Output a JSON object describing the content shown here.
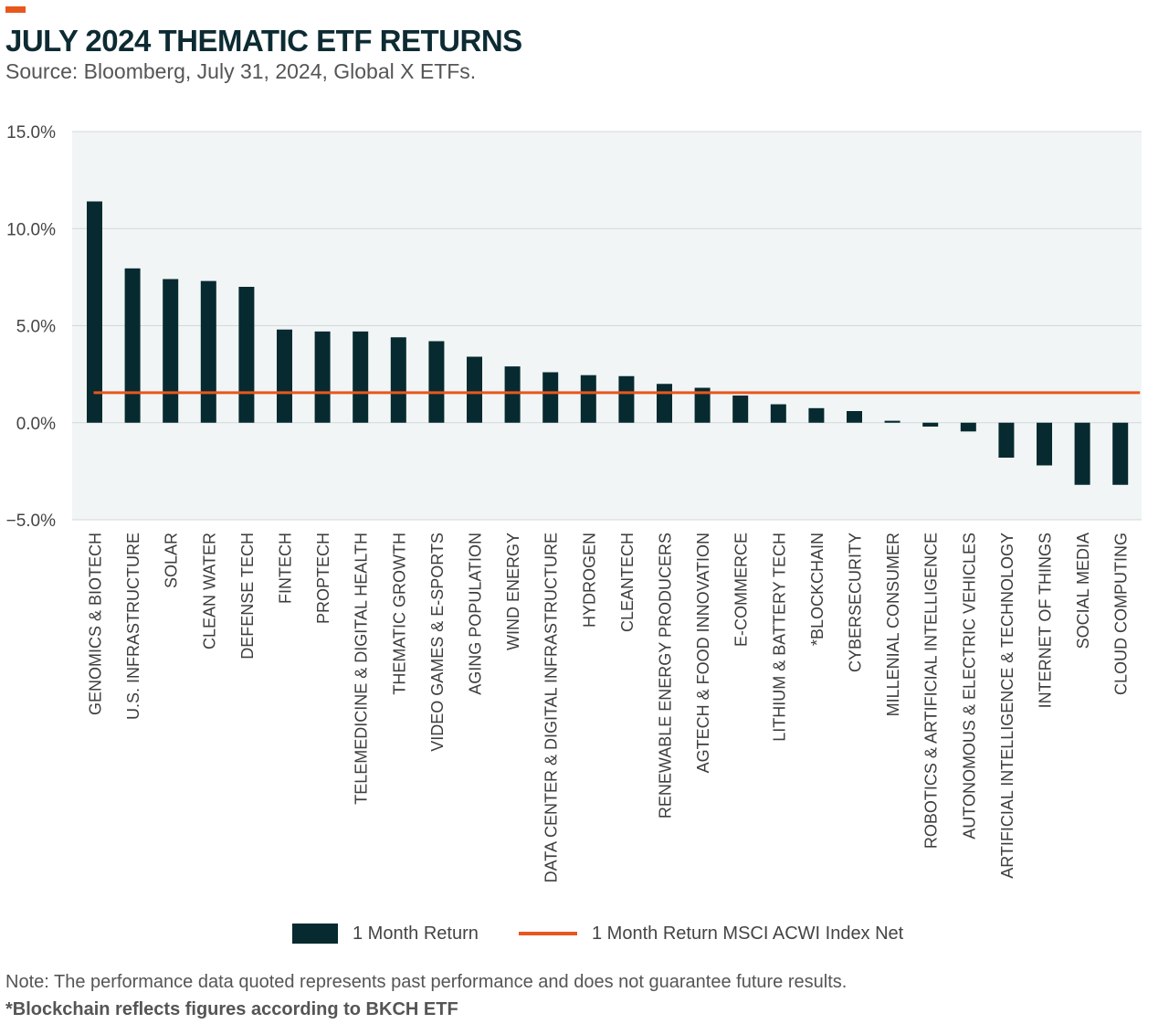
{
  "header": {
    "title": "JULY 2024 THEMATIC ETF RETURNS",
    "subtitle": "Source: Bloomberg, July 31, 2024, Global X ETFs."
  },
  "colors": {
    "accent": "#E8571E",
    "title": "#0D2B33",
    "bar": "#062A2F",
    "line": "#E8571E",
    "plot_bg": "#F1F5F6",
    "grid": "#D3D8DA"
  },
  "chart_data": {
    "type": "bar",
    "title": "JULY 2024 THEMATIC ETF RETURNS",
    "ylim": [
      -5.0,
      15.0
    ],
    "yticks": [
      -5.0,
      0.0,
      5.0,
      10.0,
      15.0
    ],
    "ytick_labels": [
      "−5.0%",
      "0.0%",
      "5.0%",
      "10.0%",
      "15.0%"
    ],
    "grid": true,
    "legend_position": "bottom",
    "categories": [
      "GENOMICS & BIOTECH",
      "U.S. INFRASTRUCTURE",
      "SOLAR",
      "CLEAN WATER",
      "DEFENSE TECH",
      "FINTECH",
      "PROPTECH",
      "TELEMEDICINE & DIGITAL HEALTH",
      "THEMATIC GROWTH",
      "VIDEO GAMES & E-SPORTS",
      "AGING POPULATION",
      "WIND ENERGY",
      "DATA CENTER & DIGITAL INFRASTRUCTURE",
      "HYDROGEN",
      "CLEANTECH",
      "RENEWABLE ENERGY PRODUCERS",
      "AGTECH & FOOD INNOVATION",
      "E-COMMERCE",
      "LITHIUM & BATTERY TECH",
      "*BLOCKCHAIN",
      "CYBERSECURITY",
      "MILLENIAL CONSUMER",
      "ROBOTICS & ARTIFICIAL INTELLIGENCE",
      "AUTONOMOUS & ELECTRIC VEHICLES",
      "ARTIFICIAL INTELLIGENCE & TECHNOLOGY",
      "INTERNET OF THINGS",
      "SOCIAL MEDIA",
      "CLOUD COMPUTING"
    ],
    "series": [
      {
        "name": "1 Month Return",
        "type": "bar",
        "values": [
          11.4,
          7.95,
          7.4,
          7.3,
          7.0,
          4.8,
          4.7,
          4.7,
          4.4,
          4.2,
          3.4,
          2.9,
          2.6,
          2.45,
          2.4,
          2.0,
          1.8,
          1.4,
          0.95,
          0.75,
          0.6,
          0.1,
          -0.2,
          -0.45,
          -1.8,
          -2.2,
          -3.2,
          -3.2
        ]
      },
      {
        "name": "1 Month Return MSCI ACWI Index Net",
        "type": "line",
        "value": 1.55
      }
    ]
  },
  "legend": {
    "bar_label": "1 Month Return",
    "line_label": "1 Month Return MSCI ACWI Index Net"
  },
  "footer": {
    "note": "Note: The performance data quoted represents past performance and does not guarantee future results.",
    "footnote": "*Blockchain reflects figures according to BKCH ETF"
  }
}
